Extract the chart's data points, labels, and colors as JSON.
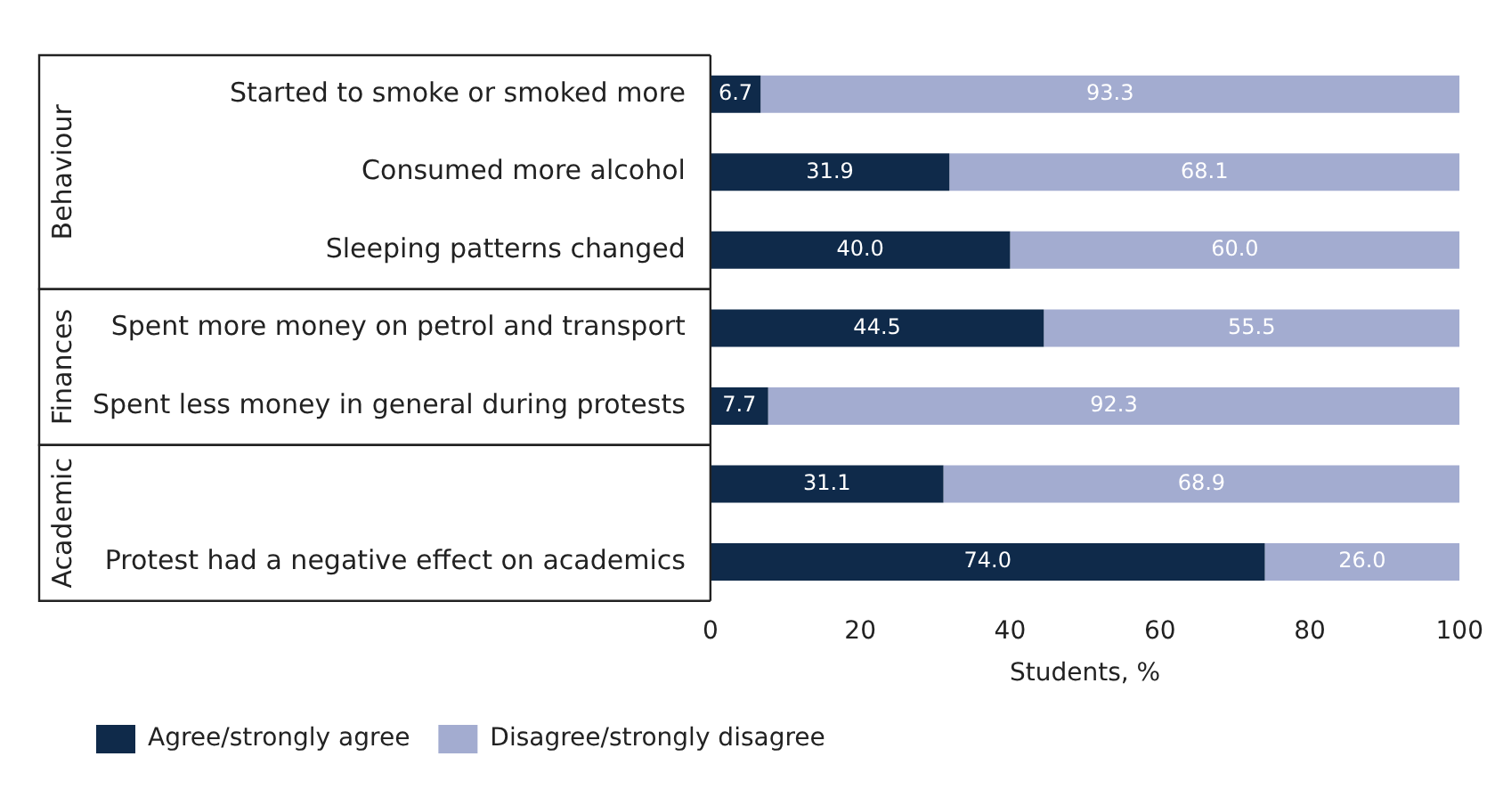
{
  "chart_data": {
    "type": "bar",
    "orientation": "horizontal",
    "stacked": true,
    "categories": [
      "Started to smoke or smoked more",
      "Consumed more alcohol",
      "Sleeping patterns changed",
      "Spent more money on petrol and transport",
      "Spent less money in general during protests",
      null,
      "Protest had a negative effect on academics"
    ],
    "series": [
      {
        "name": "Agree/strongly agree",
        "color": "#0f2a4a",
        "values": [
          6.7,
          31.9,
          40.0,
          44.5,
          7.7,
          31.1,
          74.0
        ],
        "value_labels": [
          "6.7",
          "31.9",
          "40.0",
          "44.5",
          "7.7",
          "31.1",
          "74.0"
        ]
      },
      {
        "name": "Disagree/strongly disagree",
        "color": "#a3acd0",
        "values": [
          93.3,
          68.1,
          60.0,
          55.5,
          92.3,
          68.9,
          26.0
        ],
        "value_labels": [
          "93.3",
          "68.1",
          "60.0",
          "55.5",
          "92.3",
          "68.9",
          "26.0"
        ]
      }
    ],
    "xlabel": "Students, %",
    "xlim": [
      0,
      100
    ],
    "xticks": [
      0,
      20,
      40,
      60,
      80,
      100
    ],
    "legend": "bottom left",
    "grid": false,
    "annotations": [
      "Behaviour",
      "Finances",
      "Academic"
    ]
  }
}
